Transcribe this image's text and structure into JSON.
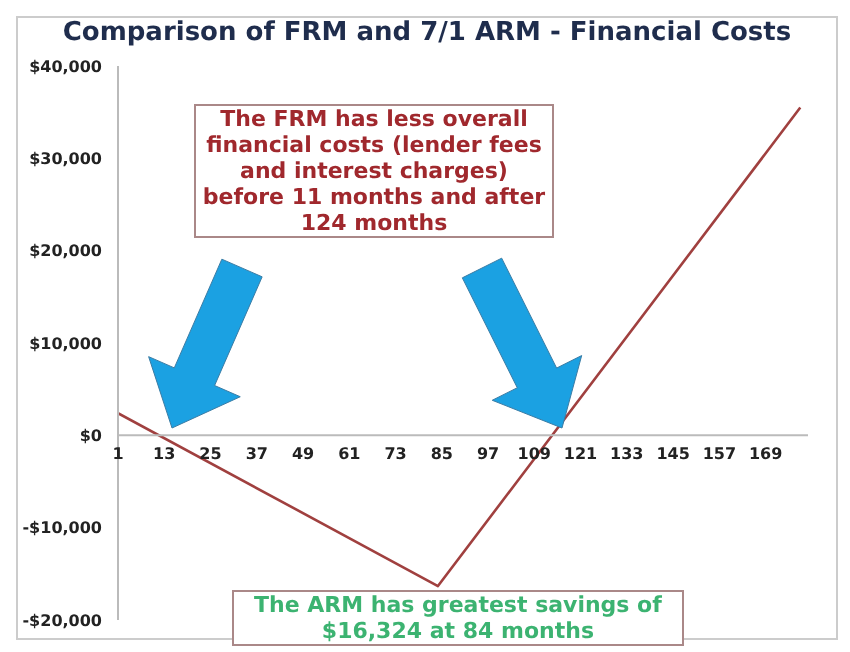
{
  "chart_data": {
    "type": "line",
    "title": "Comparison of FRM and 7/1 ARM - Financial Costs",
    "x": [
      1,
      84,
      178
    ],
    "series": [
      {
        "color": "#a0403f",
        "values": [
          2400,
          -16324,
          35500
        ]
      }
    ],
    "xlim": [
      1,
      180
    ],
    "xticks": [
      1,
      13,
      25,
      37,
      49,
      61,
      73,
      85,
      97,
      109,
      121,
      133,
      145,
      157,
      169
    ],
    "ylim": [
      -20000,
      40000
    ],
    "yticks": [
      {
        "value": -20000,
        "label": "-$20,000"
      },
      {
        "value": -10000,
        "label": "-$10,000"
      },
      {
        "value": 0,
        "label": "$0"
      },
      {
        "value": 10000,
        "label": "$10,000"
      },
      {
        "value": 20000,
        "label": "$20,000"
      },
      {
        "value": 30000,
        "label": "$30,000"
      },
      {
        "value": 40000,
        "label": "$40,000"
      }
    ],
    "grid": false,
    "legend": false,
    "marker": "none",
    "line_style": "solid",
    "annotations": [
      "The FRM has less overall financial costs (lender fees and interest charges) before 11 months and after 124 months",
      {
        "text": "The ARM has greatest savings of $16,324 at 84 months",
        "x": 84,
        "y": -16324
      }
    ]
  }
}
